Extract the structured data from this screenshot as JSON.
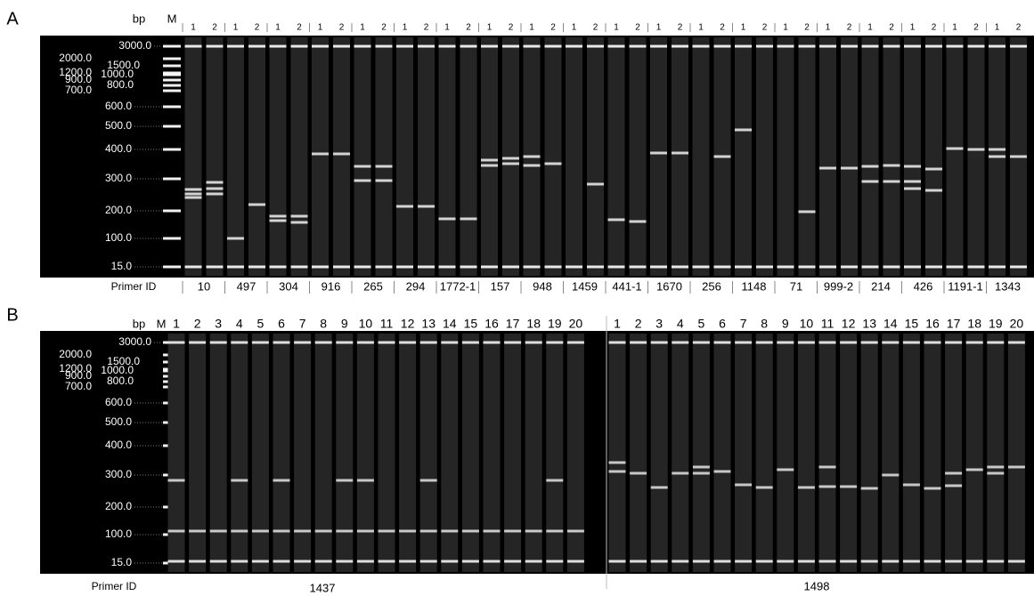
{
  "panel_a": {
    "label": "A",
    "bp": "bp",
    "marker": "M",
    "primer_label": "Primer ID",
    "ladder": [
      "3000.0",
      "2000.0",
      "1500.0",
      "1200.0",
      "1000.0",
      "900.0",
      "800.0",
      "700.0",
      "600.0",
      "500.0",
      "400.0",
      "300.0",
      "200.0",
      "100.0",
      "15.0"
    ],
    "primers": [
      {
        "id": "10",
        "lanes": [
          "1",
          "2"
        ]
      },
      {
        "id": "497",
        "lanes": [
          "1",
          "2"
        ]
      },
      {
        "id": "304",
        "lanes": [
          "1",
          "2"
        ]
      },
      {
        "id": "916",
        "lanes": [
          "1",
          "2"
        ]
      },
      {
        "id": "265",
        "lanes": [
          "1",
          "2"
        ]
      },
      {
        "id": "294",
        "lanes": [
          "1",
          "2"
        ]
      },
      {
        "id": "1772-1",
        "lanes": [
          "1",
          "2"
        ]
      },
      {
        "id": "157",
        "lanes": [
          "1",
          "2"
        ]
      },
      {
        "id": "948",
        "lanes": [
          "1",
          "2"
        ]
      },
      {
        "id": "1459",
        "lanes": [
          "1",
          "2"
        ]
      },
      {
        "id": "441-1",
        "lanes": [
          "1",
          "2"
        ]
      },
      {
        "id": "1670",
        "lanes": [
          "1",
          "2"
        ]
      },
      {
        "id": "256",
        "lanes": [
          "1",
          "2"
        ]
      },
      {
        "id": "1148",
        "lanes": [
          "1",
          "2"
        ]
      },
      {
        "id": "71",
        "lanes": [
          "1",
          "2"
        ]
      },
      {
        "id": "999-2",
        "lanes": [
          "1",
          "2"
        ]
      },
      {
        "id": "214",
        "lanes": [
          "1",
          "2"
        ]
      },
      {
        "id": "426",
        "lanes": [
          "1",
          "2"
        ]
      },
      {
        "id": "1191-1",
        "lanes": [
          "1",
          "2"
        ]
      },
      {
        "id": "1343",
        "lanes": [
          "1",
          "2"
        ]
      }
    ]
  },
  "panel_b": {
    "label": "B",
    "bp": "bp",
    "marker": "M",
    "primer_label": "Primer ID",
    "ladder": [
      "3000.0",
      "2000.0",
      "1500.0",
      "1200.0",
      "1000.0",
      "900.0",
      "800.0",
      "700.0",
      "600.0",
      "500.0",
      "400.0",
      "300.0",
      "200.0",
      "100.0",
      "15.0"
    ],
    "groups": [
      {
        "id": "1437",
        "lanes": [
          "1",
          "2",
          "3",
          "4",
          "5",
          "6",
          "7",
          "8",
          "9",
          "10",
          "11",
          "12",
          "13",
          "14",
          "15",
          "16",
          "17",
          "18",
          "19",
          "20"
        ]
      },
      {
        "id": "1498",
        "lanes": [
          "1",
          "2",
          "3",
          "4",
          "5",
          "6",
          "7",
          "8",
          "9",
          "10",
          "11",
          "12",
          "13",
          "14",
          "15",
          "16",
          "17",
          "18",
          "19",
          "20"
        ]
      }
    ]
  }
}
